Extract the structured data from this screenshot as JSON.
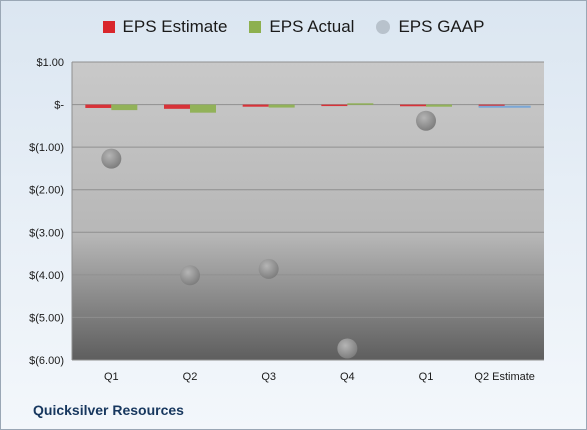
{
  "chart_data": {
    "type": "bar",
    "categories": [
      "Q1",
      "Q2",
      "Q3",
      "Q4",
      "Q1",
      "Q2 Estimate"
    ],
    "series": [
      {
        "name": "EPS Estimate",
        "kind": "bar",
        "color": "#d9262c",
        "values": [
          -0.08,
          -0.1,
          -0.05,
          -0.02,
          -0.04,
          -0.05
        ]
      },
      {
        "name": "EPS Actual",
        "kind": "bar",
        "color": "#8db04f",
        "values": [
          -0.13,
          -0.19,
          -0.07,
          0.03,
          -0.05,
          null
        ]
      },
      {
        "name": "EPS GAAP",
        "kind": "scatter",
        "color": "#8c8c8c",
        "values": [
          -1.27,
          -4.01,
          -3.86,
          -5.73,
          -0.38,
          null
        ]
      }
    ],
    "y_ticks": [
      1,
      0,
      -1,
      -2,
      -3,
      -4,
      -5,
      -6
    ],
    "y_tick_labels": [
      "$1.00",
      "$-",
      "$(1.00)",
      "$(2.00)",
      "$(3.00)",
      "$(4.00)",
      "$(5.00)",
      "$(6.00)"
    ],
    "ylim": [
      -6,
      1
    ],
    "grid": true,
    "legend_position": "top",
    "title": "",
    "xlabel": "",
    "ylabel": ""
  },
  "company_name": "Quicksilver Resources"
}
